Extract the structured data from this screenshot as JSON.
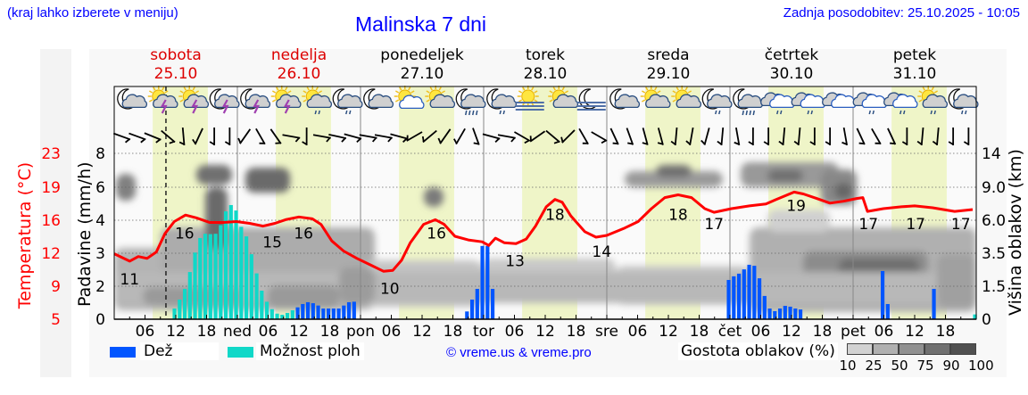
{
  "header": {
    "hint": "(kraj lahko izberete v meniju)",
    "title": "Malinska 7 dni",
    "updated": "Zadnja posodobitev: 25.10.2025 - 10:05"
  },
  "days": [
    {
      "name": "sobota",
      "date": "25.10",
      "weekend": true
    },
    {
      "name": "nedelja",
      "date": "26.10",
      "weekend": true
    },
    {
      "name": "ponedeljek",
      "date": "27.10",
      "weekend": false
    },
    {
      "name": "torek",
      "date": "28.10",
      "weekend": false
    },
    {
      "name": "sreda",
      "date": "29.10",
      "weekend": false
    },
    {
      "name": "četrtek",
      "date": "30.10",
      "weekend": false
    },
    {
      "name": "petek",
      "date": "31.10",
      "weekend": false
    }
  ],
  "axes": {
    "temp_label": "Temperatura (°C)",
    "rain_label": "Padavine (mm/h)",
    "cloud_label": "Višina oblakov (km)",
    "temp_ticks": [
      23,
      19,
      16,
      12,
      9,
      5
    ],
    "rain_ticks": [
      8,
      6,
      4,
      3,
      2,
      0
    ],
    "cloud_ticks": [
      "14",
      "9.0",
      "6.0",
      "3.5",
      "1.5",
      "0"
    ],
    "x_ticks": [
      [
        6,
        "06"
      ],
      [
        12,
        "12"
      ],
      [
        18,
        "18"
      ],
      [
        24,
        "ned"
      ],
      [
        30,
        "06"
      ],
      [
        36,
        "12"
      ],
      [
        42,
        "18"
      ],
      [
        48,
        "pon"
      ],
      [
        54,
        "06"
      ],
      [
        60,
        "12"
      ],
      [
        66,
        "18"
      ],
      [
        72,
        "tor"
      ],
      [
        78,
        "06"
      ],
      [
        84,
        "12"
      ],
      [
        90,
        "18"
      ],
      [
        96,
        "sre"
      ],
      [
        102,
        "06"
      ],
      [
        108,
        "12"
      ],
      [
        114,
        "18"
      ],
      [
        120,
        "čet"
      ],
      [
        126,
        "06"
      ],
      [
        132,
        "12"
      ],
      [
        138,
        "18"
      ],
      [
        144,
        "pet"
      ],
      [
        150,
        "06"
      ],
      [
        156,
        "12"
      ],
      [
        162,
        "18"
      ]
    ]
  },
  "legend": {
    "rain": "Dež",
    "showers": "Možnost ploh",
    "copyright": "© vreme.us & vreme.pro",
    "cloud_density": "Gostota oblakov (%)",
    "cloud_scale": [
      "10",
      "25",
      "50",
      "75",
      "90",
      "100"
    ]
  },
  "colors": {
    "temperature": "#ff0000",
    "rain": "#0055ff",
    "showers": "#10d8c8",
    "daylight": "#eff5c8",
    "title": "#0000ff",
    "weekend": "#dd0000",
    "cloud_scale": [
      "#d2d2d2",
      "#b0b0b0",
      "#909090",
      "#707070",
      "#505050"
    ]
  },
  "chart_data": {
    "type": "meteogram",
    "title": "Malinska 7 dni",
    "x_unit": "hours from Sat 25.10 00:00",
    "xlim": [
      0,
      168
    ],
    "now_hour": 10.08,
    "daylight_hours": [
      7.5,
      18.25
    ],
    "temperature": {
      "unit": "°C",
      "points": [
        [
          0,
          12.1
        ],
        [
          3,
          11.3
        ],
        [
          4.7,
          11.8
        ],
        [
          6.4,
          11.6
        ],
        [
          8.2,
          12.3
        ],
        [
          9.9,
          14.3
        ],
        [
          11.7,
          15.6
        ],
        [
          13.9,
          16.3
        ],
        [
          16,
          16.0
        ],
        [
          18.6,
          15.5
        ],
        [
          21.2,
          15.5
        ],
        [
          23.8,
          15.6
        ],
        [
          26.4,
          15.4
        ],
        [
          29,
          15.1
        ],
        [
          31.3,
          15.4
        ],
        [
          33.4,
          15.8
        ],
        [
          36,
          16.1
        ],
        [
          38.6,
          15.9
        ],
        [
          40.3,
          15.3
        ],
        [
          42.4,
          13.5
        ],
        [
          44.7,
          12.4
        ],
        [
          47.3,
          11.6
        ],
        [
          49.9,
          10.9
        ],
        [
          52.5,
          10.2
        ],
        [
          54.3,
          10.3
        ],
        [
          56,
          11.4
        ],
        [
          57.7,
          13.3
        ],
        [
          60.3,
          15.3
        ],
        [
          62.6,
          15.8
        ],
        [
          64.3,
          15.3
        ],
        [
          66.4,
          14.0
        ],
        [
          69,
          13.6
        ],
        [
          71.7,
          13.4
        ],
        [
          73,
          13.0
        ],
        [
          74.3,
          13.8
        ],
        [
          76,
          13.3
        ],
        [
          78.3,
          13.2
        ],
        [
          80.3,
          13.7
        ],
        [
          82.1,
          15.1
        ],
        [
          84.2,
          17.2
        ],
        [
          85.9,
          18.0
        ],
        [
          87.3,
          17.7
        ],
        [
          89,
          16.2
        ],
        [
          91.7,
          14.5
        ],
        [
          93.9,
          13.9
        ],
        [
          96,
          14.1
        ],
        [
          99.5,
          14.9
        ],
        [
          102.1,
          15.6
        ],
        [
          104.7,
          17.0
        ],
        [
          107.3,
          18.2
        ],
        [
          109.9,
          18.5
        ],
        [
          112.5,
          18.2
        ],
        [
          115.1,
          17.0
        ],
        [
          116.9,
          16.6
        ],
        [
          120.3,
          17.0
        ],
        [
          123.8,
          17.3
        ],
        [
          127,
          17.5
        ],
        [
          129,
          18.0
        ],
        [
          132.5,
          18.8
        ],
        [
          134.3,
          18.6
        ],
        [
          136.9,
          18.1
        ],
        [
          139.5,
          17.6
        ],
        [
          142.1,
          17.8
        ],
        [
          144.7,
          18.1
        ],
        [
          145.9,
          18.2
        ],
        [
          146.8,
          16.7
        ],
        [
          149.9,
          17.0
        ],
        [
          153.4,
          17.2
        ],
        [
          156,
          17.3
        ],
        [
          159.5,
          17.1
        ],
        [
          163.8,
          16.7
        ],
        [
          167.3,
          16.9
        ]
      ],
      "labels": [
        [
          3,
          11
        ],
        [
          13.7,
          16
        ],
        [
          30.8,
          15
        ],
        [
          36.9,
          16
        ],
        [
          53.7,
          10
        ],
        [
          62.8,
          16
        ],
        [
          78.1,
          13
        ],
        [
          85.9,
          18
        ],
        [
          95,
          14
        ],
        [
          109.9,
          18
        ],
        [
          116.9,
          17
        ],
        [
          132.9,
          19
        ],
        [
          147,
          17
        ],
        [
          156.2,
          17
        ],
        [
          165,
          17
        ]
      ]
    },
    "precipitation": {
      "unit": "mm/h",
      "showers": {
        "start_hour": 11.75,
        "values": [
          0.65,
          1.19,
          1.84,
          2.43,
          3.02,
          3.46,
          3.59,
          3.58,
          3.59,
          3.85,
          4.54,
          4.92,
          4.59,
          3.8,
          3.51,
          2.97,
          2.39,
          1.73,
          1.06,
          0.61,
          0.34,
          0.27,
          0.38,
          0.54
        ]
      },
      "showers_extra": [
        [
          167.75,
          0.29
        ]
      ],
      "rain_series": [
        {
          "start_hour": 35.75,
          "values": [
            0.72,
            0.92,
            1.03,
            0.97,
            0.83,
            0.65,
            0.65,
            0.65,
            0.65,
            0.83,
            1.03,
            1.06
          ]
        },
        {
          "start_hour": 68.75,
          "values": [
            0.47,
            1.19,
            1.84,
            3.22,
            3.22,
            1.84
          ]
        },
        {
          "start_hour": 119.75,
          "values": [
            2.19,
            2.3,
            2.38,
            2.51,
            2.65,
            2.62,
            2.24,
            1.41,
            0.65,
            0.49,
            0.65,
            0.81,
            0.76,
            0.65,
            0.59
          ]
        },
        {
          "start_hour": 149.75,
          "values": [
            2.46,
            0.92
          ]
        },
        {
          "start_hour": 159.75,
          "values": [
            1.84
          ]
        }
      ]
    },
    "weather_icons": [
      "moon-cloud",
      "sun-cloud-lightning",
      "sun-cloud-lightning",
      "moon-cloud-lightning",
      "moon-cloud-lightning",
      "sun-cloud-lightning",
      "sun-cloud-rain",
      "moon-cloud-rain",
      "moon-cloud",
      "sun-whitecloud",
      "sun-cloud",
      "moon-cloud-heavyrain",
      "moon-cloud-rain",
      "sun-fog",
      "sun-cloud",
      "moon-fog",
      "moon-cloud",
      "sun-cloud",
      "sun-cloud",
      "moon-cloud-rain",
      "moon-cloud-heavyrain",
      "overcast-rain",
      "overcast-rain",
      "overcast",
      "overcast-rain",
      "overcast-rain",
      "sun-cloud-rain",
      "moon-cloud-rain"
    ],
    "wind_barb_tilt_deg": [
      -70,
      -70,
      -68,
      -50,
      -5,
      25,
      0,
      0,
      35,
      -30,
      -35,
      -80,
      0,
      -80,
      -78,
      -75,
      -80,
      -80,
      -75,
      60,
      50,
      35,
      30,
      -20,
      -75,
      -80,
      -60,
      55,
      -50,
      45,
      -30,
      -60,
      -25,
      -20,
      -15,
      -15,
      5,
      10,
      15,
      5,
      -10,
      0,
      0,
      5,
      5,
      0,
      0,
      -10,
      -25,
      -30,
      -25,
      0,
      5,
      5,
      0,
      0
    ]
  }
}
